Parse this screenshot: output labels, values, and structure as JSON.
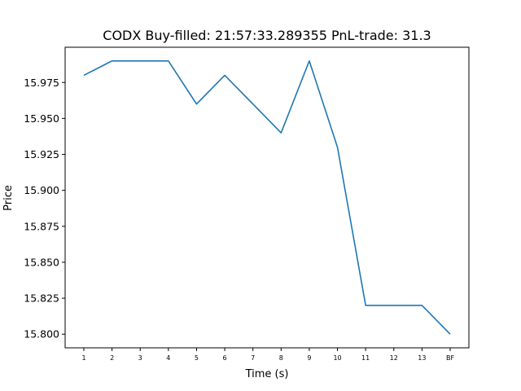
{
  "chart_data": {
    "type": "line",
    "title": "CODX  Buy-filled:  21:57:33.289355  PnL-trade:  31.3",
    "xlabel": "Time (s)",
    "ylabel": "Price",
    "categories": [
      "1",
      "2",
      "3",
      "4",
      "5",
      "6",
      "7",
      "8",
      "9",
      "10",
      "11",
      "12",
      "13",
      "BF"
    ],
    "series": [
      {
        "name": "Price",
        "color": "#1f77b4",
        "values": [
          15.98,
          15.99,
          15.99,
          15.99,
          15.96,
          15.98,
          15.96,
          15.94,
          15.99,
          15.93,
          15.82,
          15.82,
          15.82,
          15.8
        ]
      }
    ],
    "ylim": [
      15.7905,
      15.9995
    ],
    "yticks": [
      15.8,
      15.825,
      15.85,
      15.875,
      15.9,
      15.925,
      15.95,
      15.975
    ],
    "ytick_labels": [
      "15.800",
      "15.825",
      "15.850",
      "15.875",
      "15.900",
      "15.925",
      "15.950",
      "15.975"
    ],
    "grid": false,
    "legend": "none"
  }
}
